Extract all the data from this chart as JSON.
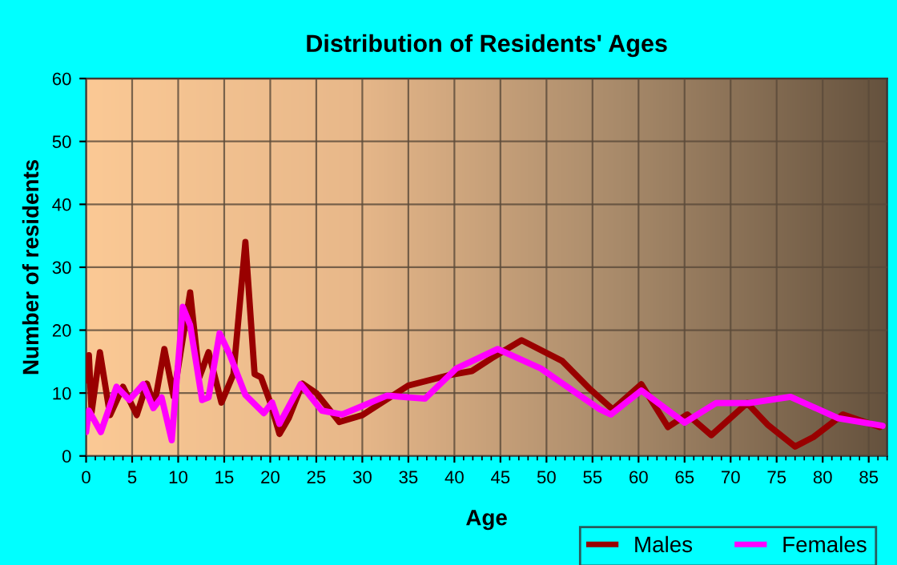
{
  "chart_data": {
    "type": "line",
    "title": "Distribution of Residents' Ages",
    "xlabel": "Age",
    "ylabel": "Number of residents",
    "xlim": [
      0,
      87
    ],
    "xticks": [
      0,
      5,
      10,
      15,
      20,
      25,
      30,
      35,
      40,
      45,
      50,
      55,
      60,
      65,
      70,
      75,
      80,
      85
    ],
    "ylim": [
      0,
      60
    ],
    "yticks": [
      0,
      10,
      20,
      30,
      40,
      50,
      60
    ],
    "grid": true,
    "legend": "bottom right",
    "marker": "none",
    "line_style": "solid",
    "series": [
      {
        "name": "Males",
        "color": "#990000",
        "x": [
          0,
          0.3,
          0.6,
          1.5,
          2.6,
          4,
          5.5,
          6.6,
          7.4,
          8.5,
          9.5,
          11.3,
          12.3,
          13.3,
          14.7,
          16,
          17.3,
          18.3,
          19,
          20,
          21,
          22,
          23.5,
          25,
          27.5,
          30,
          35,
          39.6,
          41.9,
          44,
          47.3,
          51.7,
          54.6,
          57.2,
          60.3,
          63.2,
          65.3,
          67.9,
          71.8,
          74,
          77,
          79,
          82.2,
          86.2
        ],
        "values": [
          12,
          16,
          7,
          16.5,
          6.5,
          11,
          6.5,
          11.5,
          8,
          17,
          9.5,
          26,
          12.5,
          16.5,
          8.5,
          13,
          34,
          13,
          12.5,
          8.5,
          3.5,
          6,
          11.5,
          10,
          5.4,
          6.5,
          11.2,
          12.9,
          13.5,
          15.5,
          18.4,
          15.1,
          10.8,
          7.4,
          11.4,
          4.6,
          6.6,
          3.3,
          8.4,
          5,
          1.5,
          3,
          6.6,
          4.6
        ]
      },
      {
        "name": "Females",
        "color": "#ff00ff",
        "x": [
          0,
          0.3,
          1.6,
          3.3,
          4.7,
          6.2,
          7.3,
          8.2,
          9.3,
          10.5,
          11.3,
          12.6,
          13.3,
          14.5,
          15.6,
          17.3,
          19.3,
          20.2,
          21,
          23.3,
          25.6,
          27.8,
          32.7,
          36.8,
          40.2,
          44.7,
          49.4,
          55.8,
          57,
          60.3,
          65,
          68.4,
          72,
          76.5,
          81.7,
          86.5
        ],
        "values": [
          3.8,
          7.2,
          3.8,
          11,
          8.9,
          11.4,
          7.6,
          9.3,
          2.5,
          23.7,
          20.8,
          8.9,
          9.3,
          19.5,
          16.1,
          9.7,
          6.8,
          8.5,
          5.1,
          11.4,
          7.2,
          6.6,
          9.6,
          9.1,
          13.9,
          17,
          13.9,
          7.4,
          6.6,
          10.4,
          5.3,
          8.4,
          8.4,
          9.4,
          6,
          4.8
        ]
      }
    ]
  }
}
